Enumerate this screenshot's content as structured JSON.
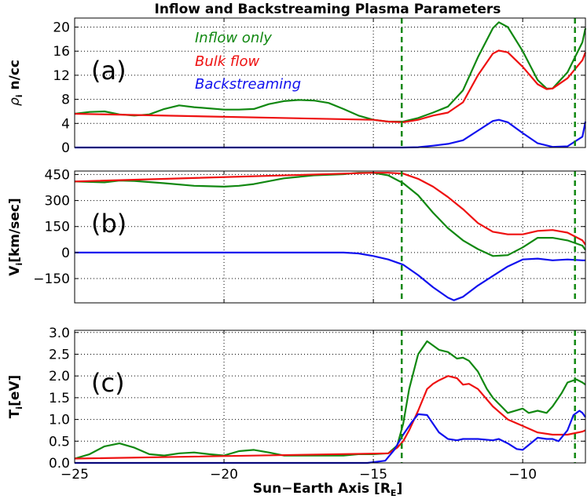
{
  "title": "Inflow and Backstreaming Plasma Parameters",
  "xlabel": "Sun−Earth Axis [R",
  "xlabel_sub": "E",
  "xlabel_end": "]",
  "colors": {
    "inflow": "#118811",
    "bulk": "#ee1111",
    "back": "#1111ee",
    "vline": "#118811"
  },
  "chart_data": [
    {
      "type": "line",
      "panel_label": "(a)",
      "ylabel": "ρ",
      "ylabel_sub": "i",
      "ylabel_rest": " n/cc",
      "xlim": [
        -25,
        -7.9
      ],
      "ylim": [
        0,
        21.5
      ],
      "xticks": [
        -25,
        -20,
        -15,
        -10
      ],
      "yticks": [
        0,
        4,
        8,
        12,
        16,
        20
      ],
      "grid": true,
      "vlines": [
        -14.05,
        -8.25
      ],
      "legend": [
        "Inflow only",
        "Bulk flow",
        "Backstreaming"
      ],
      "series": [
        {
          "name": "Inflow only",
          "color": "inflow",
          "x": [
            -25,
            -24.5,
            -24,
            -23.5,
            -23,
            -22.5,
            -22,
            -21.5,
            -21,
            -20.5,
            -20,
            -19.5,
            -19,
            -18.5,
            -18,
            -17.5,
            -17,
            -16.5,
            -16,
            -15.5,
            -15,
            -14.5,
            -14,
            -13.5,
            -13,
            -12.5,
            -12,
            -11.5,
            -11,
            -10.8,
            -10.5,
            -10,
            -9.5,
            -9.2,
            -9,
            -8.5,
            -8,
            -7.9
          ],
          "y": [
            5.6,
            5.9,
            6.0,
            5.5,
            5.3,
            5.5,
            6.4,
            7.0,
            6.7,
            6.5,
            6.3,
            6.3,
            6.4,
            7.2,
            7.7,
            7.9,
            7.8,
            7.4,
            6.4,
            5.3,
            4.6,
            4.3,
            4.3,
            4.9,
            5.8,
            6.8,
            9.5,
            15.0,
            19.8,
            20.8,
            20.0,
            16.0,
            11.2,
            9.8,
            9.8,
            12.5,
            17.5,
            19.8
          ]
        },
        {
          "name": "Bulk flow",
          "color": "bulk",
          "x": [
            -25,
            -15,
            -14.5,
            -14,
            -13.5,
            -13,
            -12.5,
            -12,
            -11.5,
            -11,
            -10.8,
            -10.5,
            -10,
            -9.5,
            -9.2,
            -9,
            -8.5,
            -8,
            -7.9
          ],
          "y": [
            5.6,
            4.6,
            4.3,
            4.2,
            4.6,
            5.3,
            5.8,
            7.5,
            12.0,
            15.6,
            16.1,
            15.8,
            13.4,
            10.5,
            9.7,
            9.8,
            11.5,
            14.5,
            15.8
          ]
        },
        {
          "name": "Backstreaming",
          "color": "back",
          "x": [
            -25,
            -15,
            -14.5,
            -14,
            -13.5,
            -13,
            -12.5,
            -12,
            -11.5,
            -11,
            -10.8,
            -10.5,
            -10,
            -9.5,
            -9,
            -8.5,
            -8,
            -7.9
          ],
          "y": [
            0,
            0,
            0,
            0,
            0.05,
            0.3,
            0.6,
            1.2,
            2.8,
            4.4,
            4.6,
            4.2,
            2.4,
            0.7,
            0.1,
            0.2,
            1.8,
            4.3
          ]
        }
      ]
    },
    {
      "type": "line",
      "panel_label": "(b)",
      "ylabel": "V",
      "ylabel_sub": "i",
      "ylabel_rest": "[km/sec]",
      "xlim": [
        -25,
        -7.9
      ],
      "ylim": [
        -290,
        470
      ],
      "xticks": [
        -25,
        -20,
        -15,
        -10
      ],
      "yticks": [
        -150,
        0,
        150,
        300,
        450
      ],
      "grid": true,
      "vlines": [
        -14.05,
        -8.25
      ],
      "series": [
        {
          "name": "Inflow only",
          "color": "inflow",
          "x": [
            -25,
            -24,
            -23.5,
            -23,
            -22,
            -21,
            -20,
            -19.5,
            -19,
            -18,
            -17,
            -16,
            -15.5,
            -15,
            -14.5,
            -14,
            -13.5,
            -13,
            -12.5,
            -12,
            -11.5,
            -11,
            -10.5,
            -10,
            -9.5,
            -9,
            -8.5,
            -8,
            -7.9
          ],
          "y": [
            410,
            405,
            415,
            413,
            400,
            385,
            380,
            385,
            395,
            428,
            445,
            452,
            460,
            460,
            445,
            400,
            330,
            230,
            140,
            70,
            20,
            -20,
            -15,
            30,
            85,
            85,
            70,
            40,
            15
          ]
        },
        {
          "name": "Bulk flow",
          "color": "bulk",
          "x": [
            -25,
            -15,
            -14.5,
            -14,
            -13.5,
            -13,
            -12.5,
            -12,
            -11.5,
            -11,
            -10.5,
            -10,
            -9.5,
            -9,
            -8.5,
            -8,
            -7.9
          ],
          "y": [
            410,
            460,
            460,
            455,
            425,
            380,
            320,
            250,
            170,
            120,
            105,
            105,
            125,
            130,
            115,
            70,
            45
          ]
        },
        {
          "name": "Backstreaming",
          "color": "back",
          "x": [
            -25,
            -16.5,
            -16,
            -15.5,
            -15,
            -14.5,
            -14,
            -13.5,
            -13,
            -12.5,
            -12.3,
            -12,
            -11.5,
            -11,
            -10.5,
            -10,
            -9.5,
            -9,
            -8.5,
            -8,
            -7.9
          ],
          "y": [
            0,
            0,
            0,
            -5,
            -20,
            -40,
            -70,
            -130,
            -200,
            -260,
            -275,
            -255,
            -190,
            -135,
            -80,
            -40,
            -35,
            -45,
            -40,
            -45,
            -45
          ]
        }
      ]
    },
    {
      "type": "line",
      "panel_label": "(c)",
      "ylabel": "T",
      "ylabel_sub": "i",
      "ylabel_rest": "[eV]",
      "xlim": [
        -25,
        -7.9
      ],
      "ylim": [
        0,
        3.05
      ],
      "xticks": [
        -25,
        -20,
        -15,
        -10
      ],
      "yticks": [
        0.0,
        0.5,
        1.0,
        1.5,
        2.0,
        2.5,
        3.0
      ],
      "grid": true,
      "vlines": [
        -14.05,
        -8.25
      ],
      "series": [
        {
          "name": "Inflow only",
          "color": "inflow",
          "x": [
            -25,
            -24.5,
            -24,
            -23.5,
            -23,
            -22.5,
            -22,
            -21.5,
            -21,
            -20.5,
            -20,
            -19.5,
            -19,
            -18.5,
            -18,
            -17.5,
            -17,
            -16,
            -15.5,
            -15,
            -14.5,
            -14.2,
            -14,
            -13.8,
            -13.5,
            -13.2,
            -13,
            -12.8,
            -12.5,
            -12.2,
            -12,
            -11.8,
            -11.5,
            -11.2,
            -11,
            -10.5,
            -10,
            -9.8,
            -9.5,
            -9.2,
            -9,
            -8.7,
            -8.5,
            -8.2,
            -8,
            -7.9
          ],
          "y": [
            0.1,
            0.2,
            0.38,
            0.45,
            0.35,
            0.2,
            0.17,
            0.22,
            0.24,
            0.2,
            0.17,
            0.27,
            0.3,
            0.24,
            0.17,
            0.17,
            0.17,
            0.17,
            0.2,
            0.2,
            0.22,
            0.4,
            0.9,
            1.7,
            2.5,
            2.8,
            2.7,
            2.6,
            2.55,
            2.4,
            2.42,
            2.35,
            2.1,
            1.7,
            1.5,
            1.15,
            1.25,
            1.15,
            1.2,
            1.15,
            1.3,
            1.6,
            1.85,
            1.92,
            1.85,
            1.8
          ]
        },
        {
          "name": "Bulk flow",
          "color": "bulk",
          "x": [
            -25,
            -14.5,
            -14.2,
            -14,
            -13.8,
            -13.5,
            -13.2,
            -13,
            -12.8,
            -12.5,
            -12.2,
            -12,
            -11.8,
            -11.5,
            -11,
            -10.5,
            -10,
            -9.5,
            -9,
            -8.5,
            -8,
            -7.9
          ],
          "y": [
            0.1,
            0.22,
            0.35,
            0.5,
            0.75,
            1.2,
            1.7,
            1.82,
            1.9,
            2.0,
            1.95,
            1.8,
            1.82,
            1.7,
            1.3,
            1.0,
            0.85,
            0.7,
            0.65,
            0.65,
            0.72,
            0.75
          ]
        },
        {
          "name": "Backstreaming",
          "color": "back",
          "x": [
            -25,
            -15.2,
            -14.6,
            -14.3,
            -14,
            -13.7,
            -13.5,
            -13.2,
            -13,
            -12.8,
            -12.5,
            -12.2,
            -12,
            -11.5,
            -11,
            -10.8,
            -10.5,
            -10.2,
            -10,
            -9.5,
            -9.2,
            -9,
            -8.8,
            -8.5,
            -8.3,
            -8.1,
            -8,
            -7.9
          ],
          "y": [
            0,
            0,
            0.05,
            0.3,
            0.65,
            0.95,
            1.12,
            1.1,
            0.9,
            0.7,
            0.55,
            0.52,
            0.55,
            0.55,
            0.52,
            0.55,
            0.45,
            0.32,
            0.3,
            0.58,
            0.55,
            0.55,
            0.5,
            0.75,
            1.1,
            1.2,
            1.15,
            1.05
          ]
        }
      ]
    }
  ]
}
